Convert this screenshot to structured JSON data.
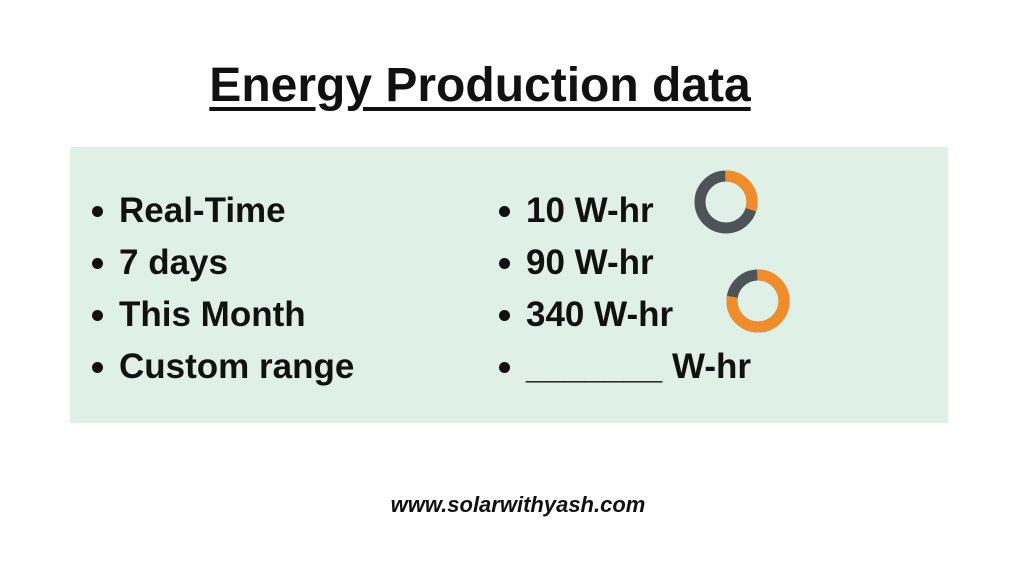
{
  "title": "Energy Production data",
  "list_left": [
    "Real-Time",
    "7 days",
    "This Month",
    "Custom range"
  ],
  "list_right": [
    "10 W-hr",
    "90 W-hr",
    "340 W-hr",
    "_______ W-hr"
  ],
  "footer": "www.solarwithyash.com"
}
